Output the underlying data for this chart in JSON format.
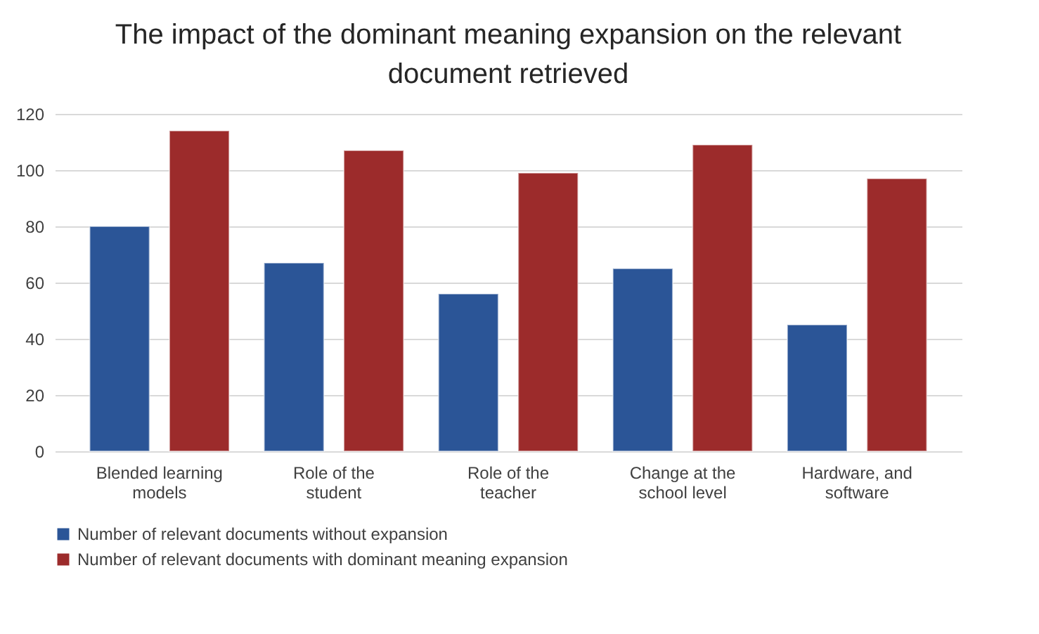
{
  "chart_data": {
    "type": "bar",
    "title": "The impact of the dominant meaning expansion on the relevant document retrieved",
    "categories": [
      "Blended learning models",
      "Role of the student",
      "Role of the teacher",
      "Change at the school level",
      "Hardware, and software"
    ],
    "series": [
      {
        "name": "Number of relevant documents without expansion",
        "color": "#2b5597",
        "values": [
          80,
          67,
          56,
          65,
          45
        ]
      },
      {
        "name": "Number of relevant documents with dominant meaning expansion",
        "color": "#9c2b2b",
        "values": [
          114,
          107,
          99,
          109,
          97
        ]
      }
    ],
    "ylim": [
      0,
      120
    ],
    "yticks": [
      0,
      20,
      40,
      60,
      80,
      100,
      120
    ],
    "grid": "y",
    "legend": "bottom"
  }
}
